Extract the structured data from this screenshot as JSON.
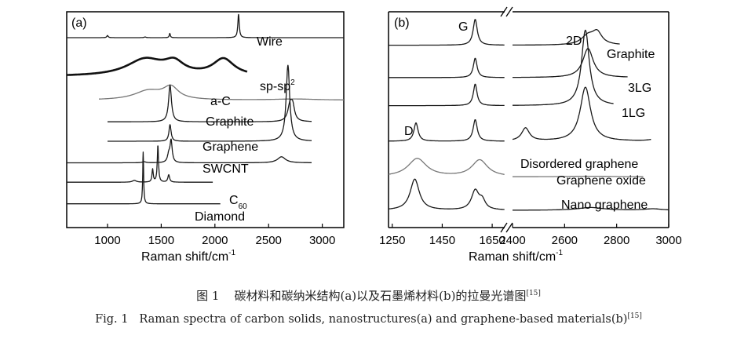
{
  "chart_data": [
    {
      "type": "line",
      "panel_label": "(a)",
      "xlabel": "Raman shift/cm",
      "xlabel_sup": "-1",
      "xlim": [
        620,
        3200
      ],
      "xticks": [
        "1000",
        "1500",
        "2000",
        "2500",
        "3000"
      ],
      "xtick_values": [
        1000,
        1500,
        2000,
        2500,
        3000
      ],
      "series": [
        {
          "name": "Wire",
          "baseline": 0.88,
          "x_range": [
            620,
            3200
          ],
          "weight": "thin",
          "peaks": [
            [
              1000,
              0.09,
              8
            ],
            [
              1350,
              0.03,
              10
            ],
            [
              1580,
              0.18,
              6
            ],
            [
              2220,
              0.98,
              8
            ]
          ]
        },
        {
          "name": "sp-sp",
          "name_sup": "2",
          "baseline": 0.7,
          "x_range": [
            620,
            2300
          ],
          "weight": "bold",
          "peaks": [
            [
              1350,
              0.32,
              210
            ],
            [
              1620,
              0.22,
              110
            ],
            [
              2080,
              0.32,
              120
            ]
          ]
        },
        {
          "name": "a-C",
          "baseline": 0.59,
          "x_range": [
            920,
            3200
          ],
          "weight": "light",
          "peaks": [
            [
              1380,
              0.42,
              160
            ],
            [
              1590,
              0.55,
              85
            ],
            [
              2750,
              0.05,
              250
            ]
          ]
        },
        {
          "name": "Graphite",
          "baseline": 0.49,
          "x_range": [
            1000,
            2900
          ],
          "weight": "thin",
          "peaks": [
            [
              1582,
              1.0,
              16
            ],
            [
              2700,
              0.45,
              25
            ],
            [
              2725,
              0.35,
              20
            ]
          ]
        },
        {
          "name": "Graphene",
          "baseline": 0.4,
          "x_range": [
            1000,
            2900
          ],
          "weight": "thin",
          "peaks": [
            [
              1582,
              0.48,
              12
            ],
            [
              2680,
              2.2,
              20
            ]
          ]
        },
        {
          "name": "SWCNT",
          "baseline": 0.3,
          "x_range": [
            620,
            2900
          ],
          "weight": "thin",
          "peaks": [
            [
              1340,
              0.05,
              20
            ],
            [
              1570,
              0.35,
              14
            ],
            [
              1592,
              1.0,
              12
            ],
            [
              2620,
              0.28,
              45
            ]
          ]
        },
        {
          "name": "C",
          "name_sub": "60",
          "baseline": 0.21,
          "x_range": [
            620,
            1980
          ],
          "weight": "thin",
          "peaks": [
            [
              1250,
              0.05,
              22
            ],
            [
              1420,
              0.35,
              7
            ],
            [
              1469,
              1.0,
              7
            ],
            [
              1570,
              0.2,
              10
            ]
          ]
        },
        {
          "name": "Diamond",
          "baseline": 0.11,
          "x_range": [
            620,
            2050
          ],
          "weight": "thin",
          "peaks": [
            [
              1332,
              1.0,
              5
            ]
          ]
        }
      ]
    },
    {
      "type": "line",
      "panel_label": "(b)",
      "xlabel": "Raman shift/cm",
      "xlabel_sup": "-1",
      "axis_break": true,
      "segments": [
        [
          1235,
          1700
        ],
        [
          2400,
          3000
        ]
      ],
      "xticks": [
        "1250",
        "1450",
        "1650",
        "2400",
        "2600",
        "2800",
        "3000"
      ],
      "xtick_values": [
        1250,
        1450,
        1650,
        2400,
        2600,
        2800,
        3000
      ],
      "peak_labels": [
        "D",
        "G",
        "2D"
      ],
      "series": [
        {
          "name": "Graphite",
          "baseline": 0.845,
          "weight": "thin",
          "peaks": [
            [
              1582,
              1.0,
              10
            ],
            [
              2690,
              0.35,
              30
            ],
            [
              2725,
              0.45,
              22
            ]
          ]
        },
        {
          "name": "3LG",
          "baseline": 0.695,
          "weight": "thin",
          "peaks": [
            [
              1582,
              1.0,
              9
            ],
            [
              2690,
              1.5,
              24
            ]
          ]
        },
        {
          "name": "1LG",
          "baseline": 0.565,
          "weight": "thin",
          "peaks": [
            [
              1582,
              1.0,
              9
            ],
            [
              2680,
              3.5,
              18
            ]
          ]
        },
        {
          "name": "Disordered graphene",
          "baseline": 0.4,
          "weight": "thin",
          "peaks": [
            [
              1345,
              0.85,
              10
            ],
            [
              1582,
              1.0,
              10
            ],
            [
              2450,
              0.6,
              18
            ],
            [
              2680,
              2.5,
              24
            ],
            [
              2950,
              0.1,
              25
            ]
          ]
        },
        {
          "name": "Graphene oxide",
          "baseline": 0.235,
          "weight": "light",
          "peaks": [
            [
              1350,
              0.6,
              45
            ],
            [
              1600,
              0.55,
              38
            ],
            [
              2700,
              0.02,
              100
            ]
          ]
        },
        {
          "name": "Nano graphene",
          "baseline": 0.08,
          "weight": "thin",
          "peaks": [
            [
              1340,
              0.9,
              22
            ],
            [
              1582,
              0.55,
              18
            ],
            [
              1610,
              0.25,
              15
            ],
            [
              2700,
              0.08,
              60
            ],
            [
              2940,
              0.04,
              40
            ]
          ]
        }
      ]
    }
  ],
  "caption": {
    "zh_fig": "图 1",
    "zh_text": "碳材料和碳纳米结构(a)以及石墨烯材料(b)的拉曼光谱图",
    "zh_ref": "[15]",
    "en_fig": "Fig. 1",
    "en_text": "Raman spectra of carbon solids, nanostructures(a) and graphene-based materials(b)",
    "en_ref": "[15]"
  }
}
